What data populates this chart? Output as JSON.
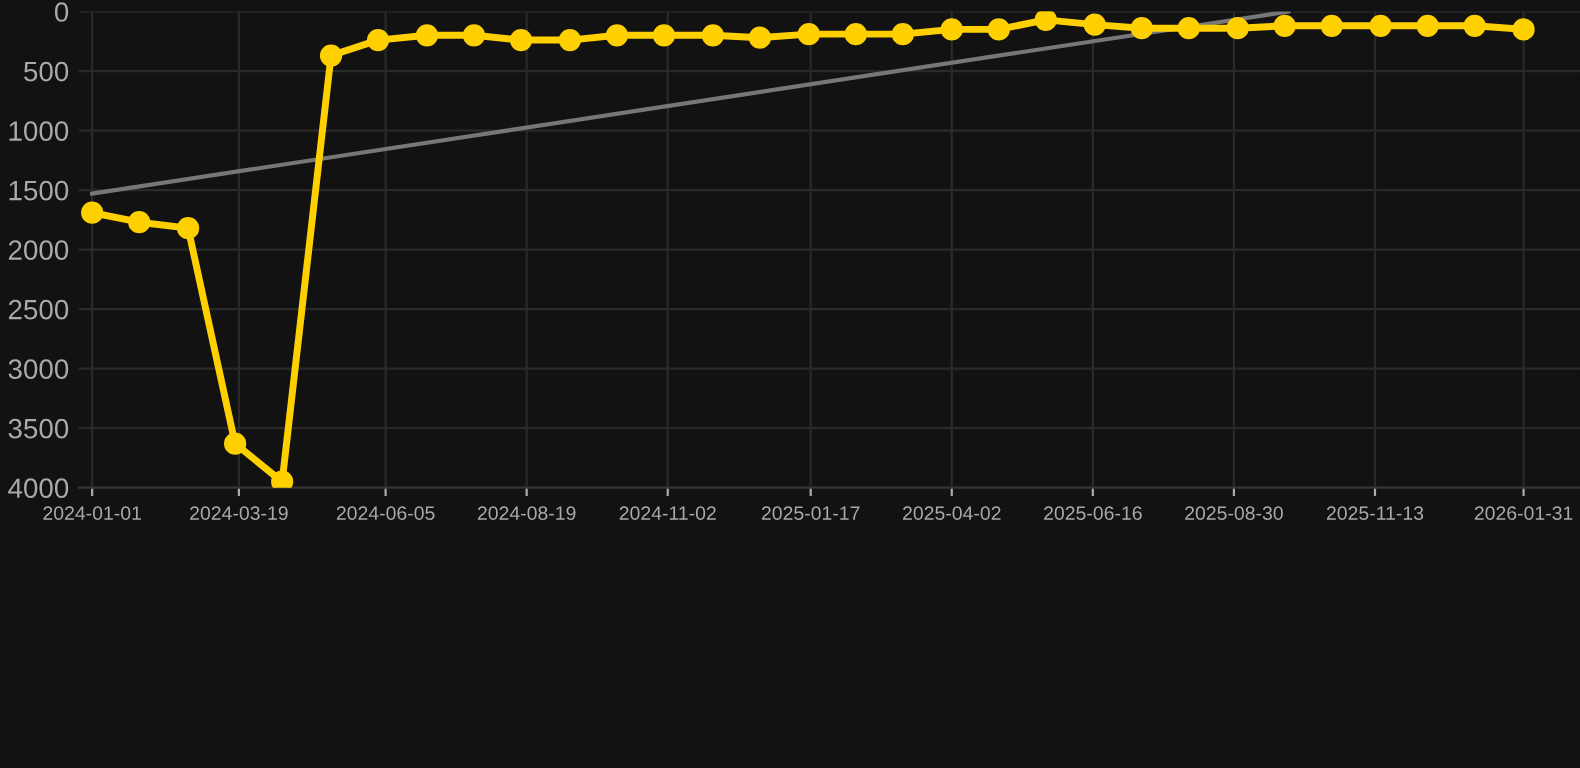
{
  "chart_data": {
    "type": "line",
    "x": [
      "2024-01-01",
      "2024-01-26",
      "2024-02-21",
      "2024-03-17",
      "2024-04-11",
      "2024-05-07",
      "2024-06-01",
      "2024-06-27",
      "2024-07-22",
      "2024-08-16",
      "2024-09-11",
      "2024-10-06",
      "2024-10-31",
      "2024-11-26",
      "2024-12-21",
      "2025-01-16",
      "2025-02-10",
      "2025-03-07",
      "2025-04-02",
      "2025-04-27",
      "2025-05-22",
      "2025-06-17",
      "2025-07-12",
      "2025-08-06",
      "2025-09-01",
      "2025-09-26",
      "2025-10-21",
      "2025-11-16",
      "2025-12-11",
      "2026-01-05",
      "2026-01-31"
    ],
    "series": [
      {
        "color": "#ffd000",
        "marker": "circle",
        "values": [
          1690,
          1770,
          1820,
          3630,
          3950,
          370,
          240,
          200,
          200,
          240,
          240,
          200,
          200,
          200,
          220,
          190,
          190,
          190,
          150,
          150,
          70,
          110,
          140,
          140,
          140,
          120,
          120,
          120,
          120,
          120,
          150
        ]
      },
      {
        "type": "line",
        "color": "#777777",
        "marker": "none",
        "x": [
          "2024-01-01",
          "2025-09-28"
        ],
        "values": [
          1530,
          0
        ]
      }
    ],
    "ylim": [
      4000,
      0
    ],
    "yticks": [
      0,
      500,
      1000,
      1500,
      2000,
      2500,
      3000,
      3500,
      4000
    ],
    "xlim": [
      "2023-12-25",
      "2026-03-02"
    ],
    "xticks": [
      "2024-01-01",
      "2024-03-19",
      "2024-06-05",
      "2024-08-19",
      "2024-11-02",
      "2025-01-17",
      "2025-04-02",
      "2025-06-16",
      "2025-08-30",
      "2025-11-13",
      "2026-01-31"
    ],
    "grid": true
  }
}
